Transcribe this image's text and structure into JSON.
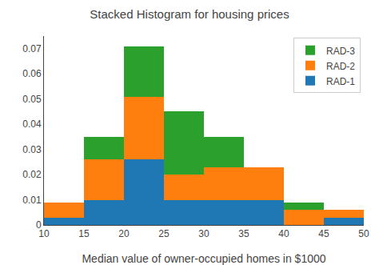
{
  "chart_data": {
    "type": "histogram",
    "stacked": true,
    "title": "Stacked Histogram for housing prices",
    "xlabel": "Median value of owner-occupied homes in $1000",
    "bins": [
      10,
      15,
      20,
      25,
      30,
      35,
      40,
      45,
      50
    ],
    "series": [
      {
        "name": "RAD-1",
        "values": [
          0.003,
          0.01,
          0.026,
          0.01,
          0.01,
          0.01,
          0.0,
          0.003
        ]
      },
      {
        "name": "RAD-2",
        "values": [
          0.006,
          0.016,
          0.025,
          0.01,
          0.013,
          0.013,
          0.006,
          0.003
        ]
      },
      {
        "name": "RAD-3",
        "values": [
          0.0,
          0.009,
          0.02,
          0.025,
          0.012,
          0.0,
          0.003,
          0.0
        ]
      }
    ],
    "xlim": [
      10,
      50
    ],
    "ylim": [
      0.0,
      0.075
    ],
    "xticks": [
      10,
      15,
      20,
      25,
      30,
      35,
      40,
      45,
      50
    ],
    "yticks": [
      0.0,
      0.01,
      0.02,
      0.03,
      0.04,
      0.05,
      0.06,
      0.07
    ],
    "legend": "upper right",
    "grid": false
  }
}
